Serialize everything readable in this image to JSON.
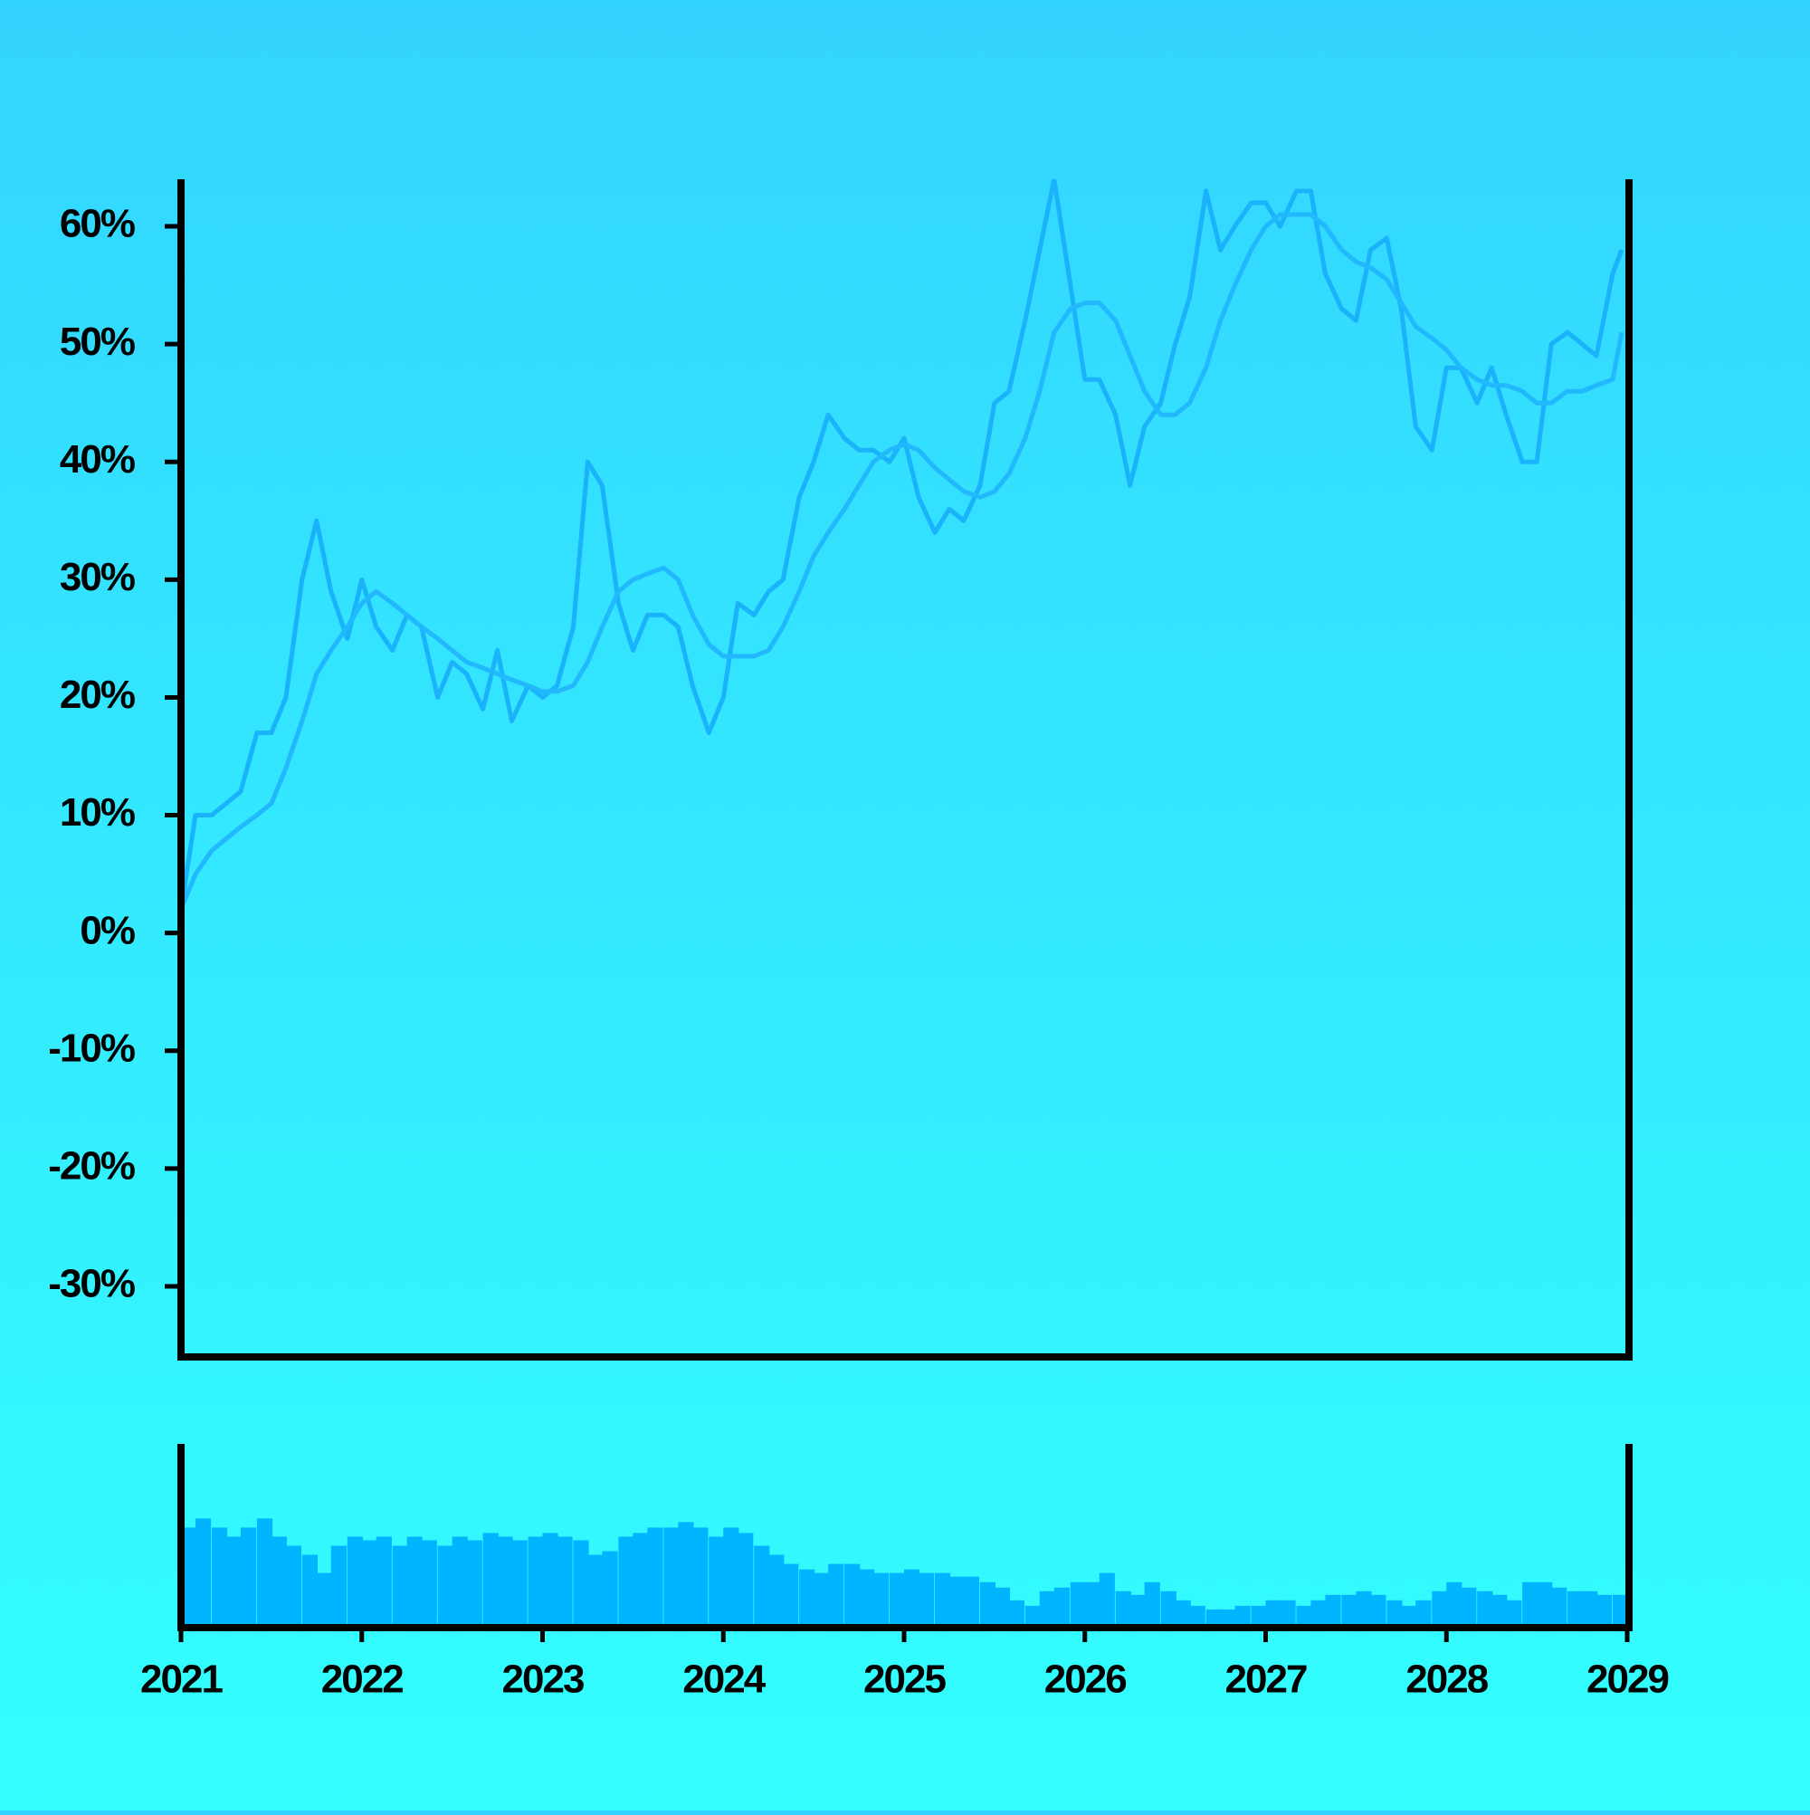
{
  "chart_data": [
    {
      "type": "line",
      "x": [
        2021,
        2021.08,
        2021.17,
        2021.25,
        2021.33,
        2021.42,
        2021.5,
        2021.58,
        2021.67,
        2021.75,
        2021.83,
        2021.92,
        2022,
        2022.08,
        2022.17,
        2022.25,
        2022.33,
        2022.42,
        2022.5,
        2022.58,
        2022.67,
        2022.75,
        2022.83,
        2022.92,
        2023,
        2023.08,
        2023.17,
        2023.25,
        2023.33,
        2023.42,
        2023.5,
        2023.58,
        2023.67,
        2023.75,
        2023.83,
        2023.92,
        2024,
        2024.08,
        2024.17,
        2024.25,
        2024.33,
        2024.42,
        2024.5,
        2024.58,
        2024.67,
        2024.75,
        2024.83,
        2024.92,
        2025,
        2025.08,
        2025.17,
        2025.25,
        2025.33,
        2025.42,
        2025.5,
        2025.58,
        2025.67,
        2025.75,
        2025.83,
        2025.92,
        2026,
        2026.08,
        2026.17,
        2026.25,
        2026.33,
        2026.42,
        2026.5,
        2026.58,
        2026.67,
        2026.75,
        2026.83,
        2026.92,
        2027,
        2027.08,
        2027.17,
        2027.25,
        2027.33,
        2027.42,
        2027.5,
        2027.58,
        2027.67,
        2027.75,
        2027.83,
        2027.92,
        2028,
        2028.08,
        2028.17,
        2028.25,
        2028.33,
        2028.42,
        2028.5,
        2028.58,
        2028.67,
        2028.75,
        2028.83,
        2028.92,
        2028.97
      ],
      "series": [
        {
          "color": "#1ab2fb",
          "width": 5,
          "values": [
            2,
            10,
            10,
            11,
            12,
            17,
            17,
            20,
            30,
            35,
            29,
            25,
            30,
            26,
            24,
            27,
            26,
            20,
            23,
            22,
            19,
            24,
            18,
            21,
            20,
            21,
            26,
            40,
            38,
            28,
            24,
            27,
            27,
            26,
            21,
            17,
            20,
            28,
            27,
            29,
            30,
            37,
            40,
            44,
            42,
            41,
            41,
            40,
            42,
            37,
            34,
            36,
            35,
            38,
            45,
            46,
            52,
            58,
            64,
            55,
            47,
            47,
            44,
            38,
            43,
            45,
            50,
            54,
            63,
            58,
            60,
            62,
            62,
            60,
            63,
            63,
            56,
            53,
            52,
            58,
            59,
            53,
            43,
            41,
            48,
            48,
            45,
            48,
            44,
            40,
            40,
            50,
            51,
            50,
            49,
            56,
            58
          ]
        },
        {
          "color": "#22b8fd",
          "width": 5,
          "values": [
            2,
            5,
            7,
            8,
            9,
            10,
            11,
            14,
            18,
            22,
            24,
            26,
            28,
            29,
            28,
            27,
            26,
            25,
            24,
            23,
            22.5,
            22,
            21.5,
            21,
            20.5,
            20.5,
            21,
            23,
            26,
            29,
            30,
            30.5,
            31,
            30,
            27,
            24.5,
            23.5,
            23.5,
            23.5,
            24,
            26,
            29,
            32,
            34,
            36,
            38,
            40,
            41,
            41.5,
            41,
            39.5,
            38.5,
            37.5,
            37,
            37.5,
            39,
            42,
            46,
            51,
            53,
            53.5,
            53.5,
            52,
            49,
            46,
            44,
            44,
            45,
            48,
            52,
            55,
            58,
            60,
            61,
            61,
            61,
            60,
            58,
            57,
            56.5,
            55.5,
            53.5,
            51.5,
            50.5,
            49.5,
            48,
            47,
            46.5,
            46.5,
            46,
            45,
            45,
            46,
            46,
            46.5,
            47,
            51
          ]
        }
      ],
      "xlim": [
        2021,
        2029
      ],
      "ylim": [
        -36,
        64
      ],
      "yticks": [
        {
          "value": -30,
          "label": "-30%"
        },
        {
          "value": -20,
          "label": "-20%"
        },
        {
          "value": -10,
          "label": "-10%"
        },
        {
          "value": 0,
          "label": "0%"
        },
        {
          "value": 10,
          "label": "10%"
        },
        {
          "value": 20,
          "label": "20%"
        },
        {
          "value": 30,
          "label": "30%"
        },
        {
          "value": 40,
          "label": "40%"
        },
        {
          "value": 50,
          "label": "50%"
        },
        {
          "value": 60,
          "label": "60%"
        }
      ]
    },
    {
      "type": "bar",
      "color": "#00b4ff",
      "x": [
        2021,
        2021.08,
        2021.17,
        2021.25,
        2021.33,
        2021.42,
        2021.5,
        2021.58,
        2021.67,
        2021.75,
        2021.83,
        2021.92,
        2022,
        2022.08,
        2022.17,
        2022.25,
        2022.33,
        2022.42,
        2022.5,
        2022.58,
        2022.67,
        2022.75,
        2022.83,
        2022.92,
        2023,
        2023.08,
        2023.17,
        2023.25,
        2023.33,
        2023.42,
        2023.5,
        2023.58,
        2023.67,
        2023.75,
        2023.83,
        2023.92,
        2024,
        2024.08,
        2024.17,
        2024.25,
        2024.33,
        2024.42,
        2024.5,
        2024.58,
        2024.67,
        2024.75,
        2024.83,
        2024.92,
        2025,
        2025.08,
        2025.17,
        2025.25,
        2025.33,
        2025.42,
        2025.5,
        2025.58,
        2025.67,
        2025.75,
        2025.83,
        2025.92,
        2026,
        2026.08,
        2026.17,
        2026.25,
        2026.33,
        2026.42,
        2026.5,
        2026.58,
        2026.67,
        2026.75,
        2026.83,
        2026.92,
        2027,
        2027.08,
        2027.17,
        2027.25,
        2027.33,
        2027.42,
        2027.5,
        2027.58,
        2027.67,
        2027.75,
        2027.83,
        2027.92,
        2028,
        2028.08,
        2028.17,
        2028.25,
        2028.33,
        2028.42,
        2028.5,
        2028.58,
        2028.67,
        2028.75,
        2028.83,
        2028.92
      ],
      "values": [
        55,
        60,
        55,
        50,
        55,
        60,
        50,
        45,
        40,
        30,
        45,
        50,
        48,
        50,
        45,
        50,
        48,
        45,
        50,
        48,
        52,
        50,
        48,
        50,
        52,
        50,
        48,
        40,
        42,
        50,
        52,
        55,
        55,
        58,
        55,
        50,
        55,
        52,
        45,
        40,
        35,
        32,
        30,
        35,
        35,
        32,
        30,
        30,
        32,
        30,
        30,
        28,
        28,
        25,
        22,
        15,
        12,
        20,
        22,
        25,
        25,
        30,
        20,
        18,
        25,
        20,
        15,
        12,
        10,
        10,
        12,
        12,
        15,
        15,
        12,
        15,
        18,
        18,
        20,
        18,
        15,
        12,
        15,
        20,
        25,
        22,
        20,
        18,
        15,
        25,
        25,
        22,
        20,
        20,
        18,
        18
      ],
      "xlim": [
        2021,
        2029
      ],
      "ylim": [
        0,
        100
      ],
      "xticks": [
        2021,
        2022,
        2023,
        2024,
        2025,
        2026,
        2027,
        2028,
        2029
      ]
    }
  ]
}
